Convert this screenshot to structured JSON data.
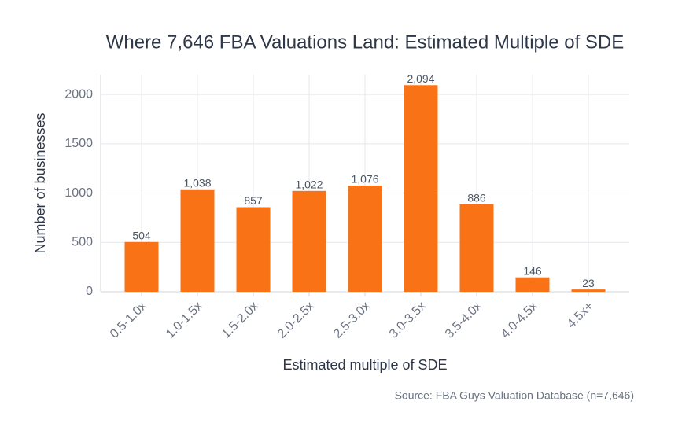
{
  "chart_data": {
    "type": "bar",
    "title": "Where 7,646 FBA Valuations Land: Estimated Multiple of SDE",
    "x_label": "Estimated multiple of SDE",
    "y_label": "Number of businesses",
    "source": "Source: FBA Guys Valuation Database (n=7,646)",
    "categories": [
      "0.5-1.0x",
      "1.0-1.5x",
      "1.5-2.0x",
      "2.0-2.5x",
      "2.5-3.0x",
      "3.0-3.5x",
      "3.5-4.0x",
      "4.0-4.5x",
      "4.5x+"
    ],
    "values": [
      504,
      1038,
      857,
      1022,
      1076,
      2094,
      886,
      146,
      23
    ],
    "value_labels": [
      "504",
      "1,038",
      "857",
      "1,022",
      "1,076",
      "2,094",
      "886",
      "146",
      "23"
    ],
    "color": "#f97316",
    "ylim": [
      0,
      2200
    ],
    "yticks": [
      0,
      500,
      1000,
      1500,
      2000
    ],
    "grid": true
  }
}
